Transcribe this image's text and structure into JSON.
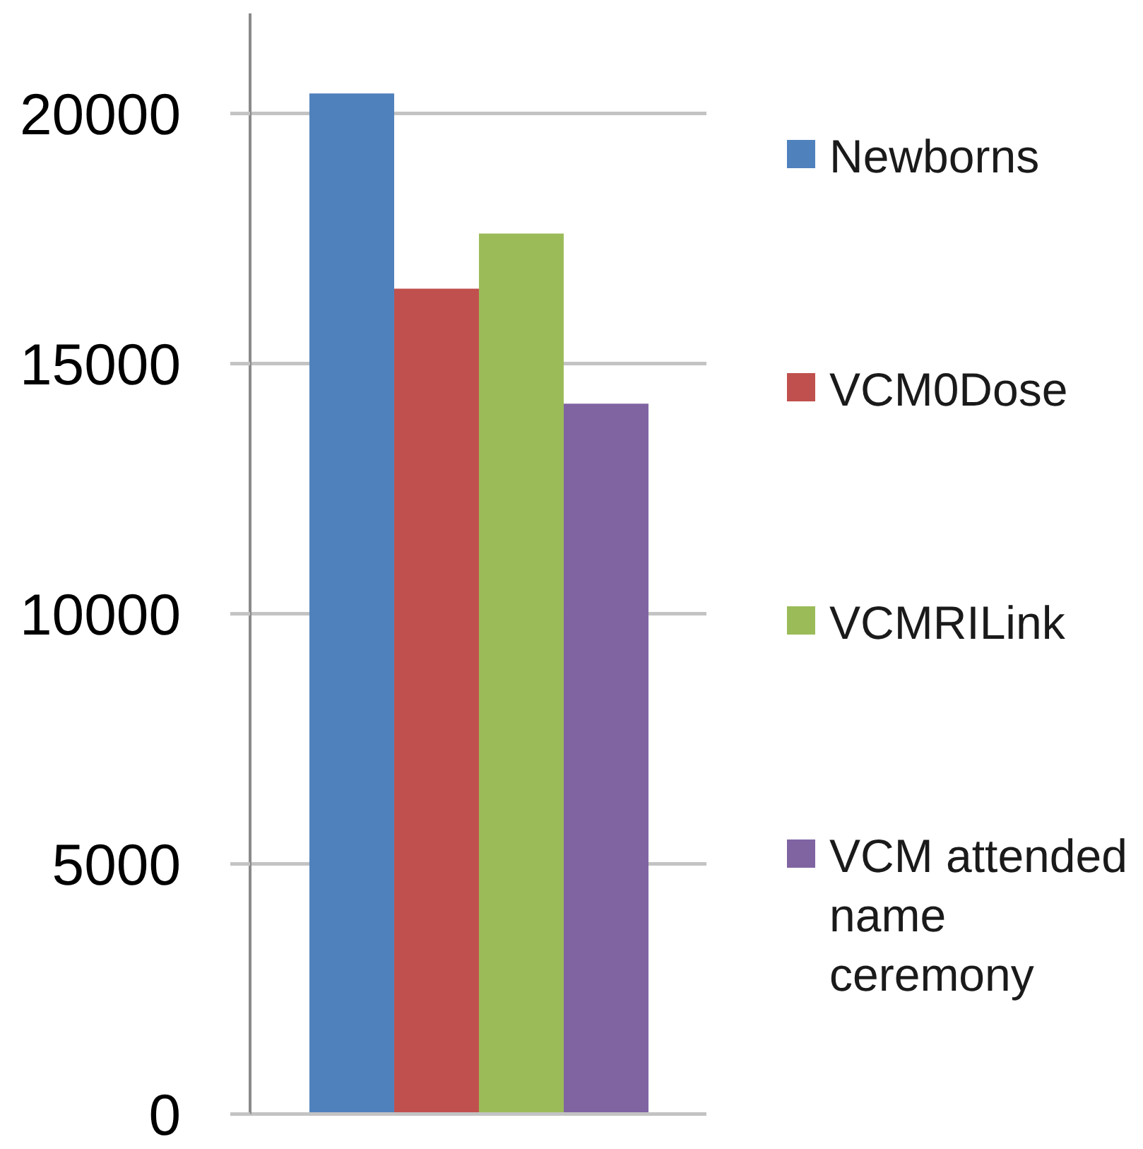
{
  "chart_data": {
    "type": "bar",
    "categories": [
      null
    ],
    "series": [
      {
        "name": "Newborns",
        "color": "#4f81bd",
        "values": [
          20400
        ]
      },
      {
        "name": "VCM0Dose",
        "color": "#c0504d",
        "values": [
          16500
        ]
      },
      {
        "name": "VCMRILink",
        "color": "#9bbb59",
        "values": [
          17600
        ]
      },
      {
        "name": "VCM attended name ceremony",
        "color": "#8064a2",
        "values": [
          14200
        ]
      }
    ],
    "ylim": [
      0,
      22000
    ],
    "yticks": [
      0,
      5000,
      10000,
      15000,
      20000
    ],
    "grid": "y",
    "legend": "right"
  }
}
